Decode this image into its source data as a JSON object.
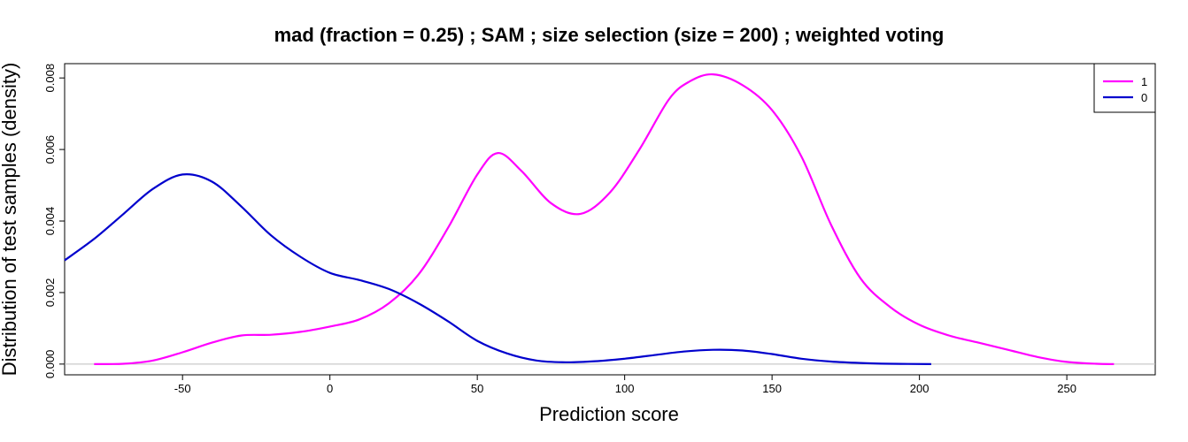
{
  "chart_data": {
    "type": "line",
    "title": "mad (fraction = 0.25) ;  SAM ;  size selection (size = 200) ;  weighted voting",
    "xlabel": "Prediction score",
    "ylabel": "Distribution of test samples (density)",
    "xlim": [
      -90,
      280
    ],
    "ylim": [
      -0.0003,
      0.0084
    ],
    "xticks": [
      -50,
      0,
      50,
      100,
      150,
      200,
      250
    ],
    "yticks": [
      0.0,
      0.002,
      0.004,
      0.006,
      0.008
    ],
    "ytick_labels": [
      "0.000",
      "0.002",
      "0.004",
      "0.006",
      "0.008"
    ],
    "baseline_y": 0,
    "legend_position": "top-right",
    "series": [
      {
        "name": "1",
        "color": "#ff00ff",
        "x": [
          -80,
          -70,
          -60,
          -50,
          -40,
          -30,
          -20,
          -10,
          0,
          10,
          20,
          30,
          40,
          50,
          57,
          65,
          75,
          85,
          95,
          105,
          115,
          122,
          130,
          140,
          150,
          160,
          170,
          180,
          190,
          200,
          210,
          220,
          230,
          240,
          250,
          260,
          266
        ],
        "y": [
          0.0,
          1e-05,
          0.0001,
          0.00033,
          0.0006,
          0.0008,
          0.00082,
          0.0009,
          0.00105,
          0.00125,
          0.0017,
          0.0025,
          0.0038,
          0.0053,
          0.0059,
          0.0054,
          0.0045,
          0.0042,
          0.0048,
          0.006,
          0.0074,
          0.0079,
          0.0081,
          0.0078,
          0.0071,
          0.0058,
          0.0039,
          0.0024,
          0.0016,
          0.0011,
          0.0008,
          0.0006,
          0.0004,
          0.0002,
          6e-05,
          1e-05,
          0.0
        ]
      },
      {
        "name": "0",
        "color": "#0000cd",
        "x": [
          -90,
          -80,
          -70,
          -60,
          -50,
          -40,
          -30,
          -20,
          -10,
          0,
          10,
          20,
          30,
          40,
          50,
          60,
          70,
          80,
          90,
          100,
          110,
          120,
          130,
          140,
          150,
          160,
          170,
          180,
          190,
          204
        ],
        "y": [
          0.0029,
          0.0035,
          0.0042,
          0.0049,
          0.0053,
          0.0051,
          0.0044,
          0.0036,
          0.003,
          0.00255,
          0.00235,
          0.0021,
          0.0017,
          0.0012,
          0.00065,
          0.0003,
          0.0001,
          5e-05,
          8e-05,
          0.00015,
          0.00025,
          0.00035,
          0.0004,
          0.00038,
          0.00028,
          0.00015,
          7e-05,
          3e-05,
          1e-05,
          0.0
        ]
      }
    ]
  }
}
